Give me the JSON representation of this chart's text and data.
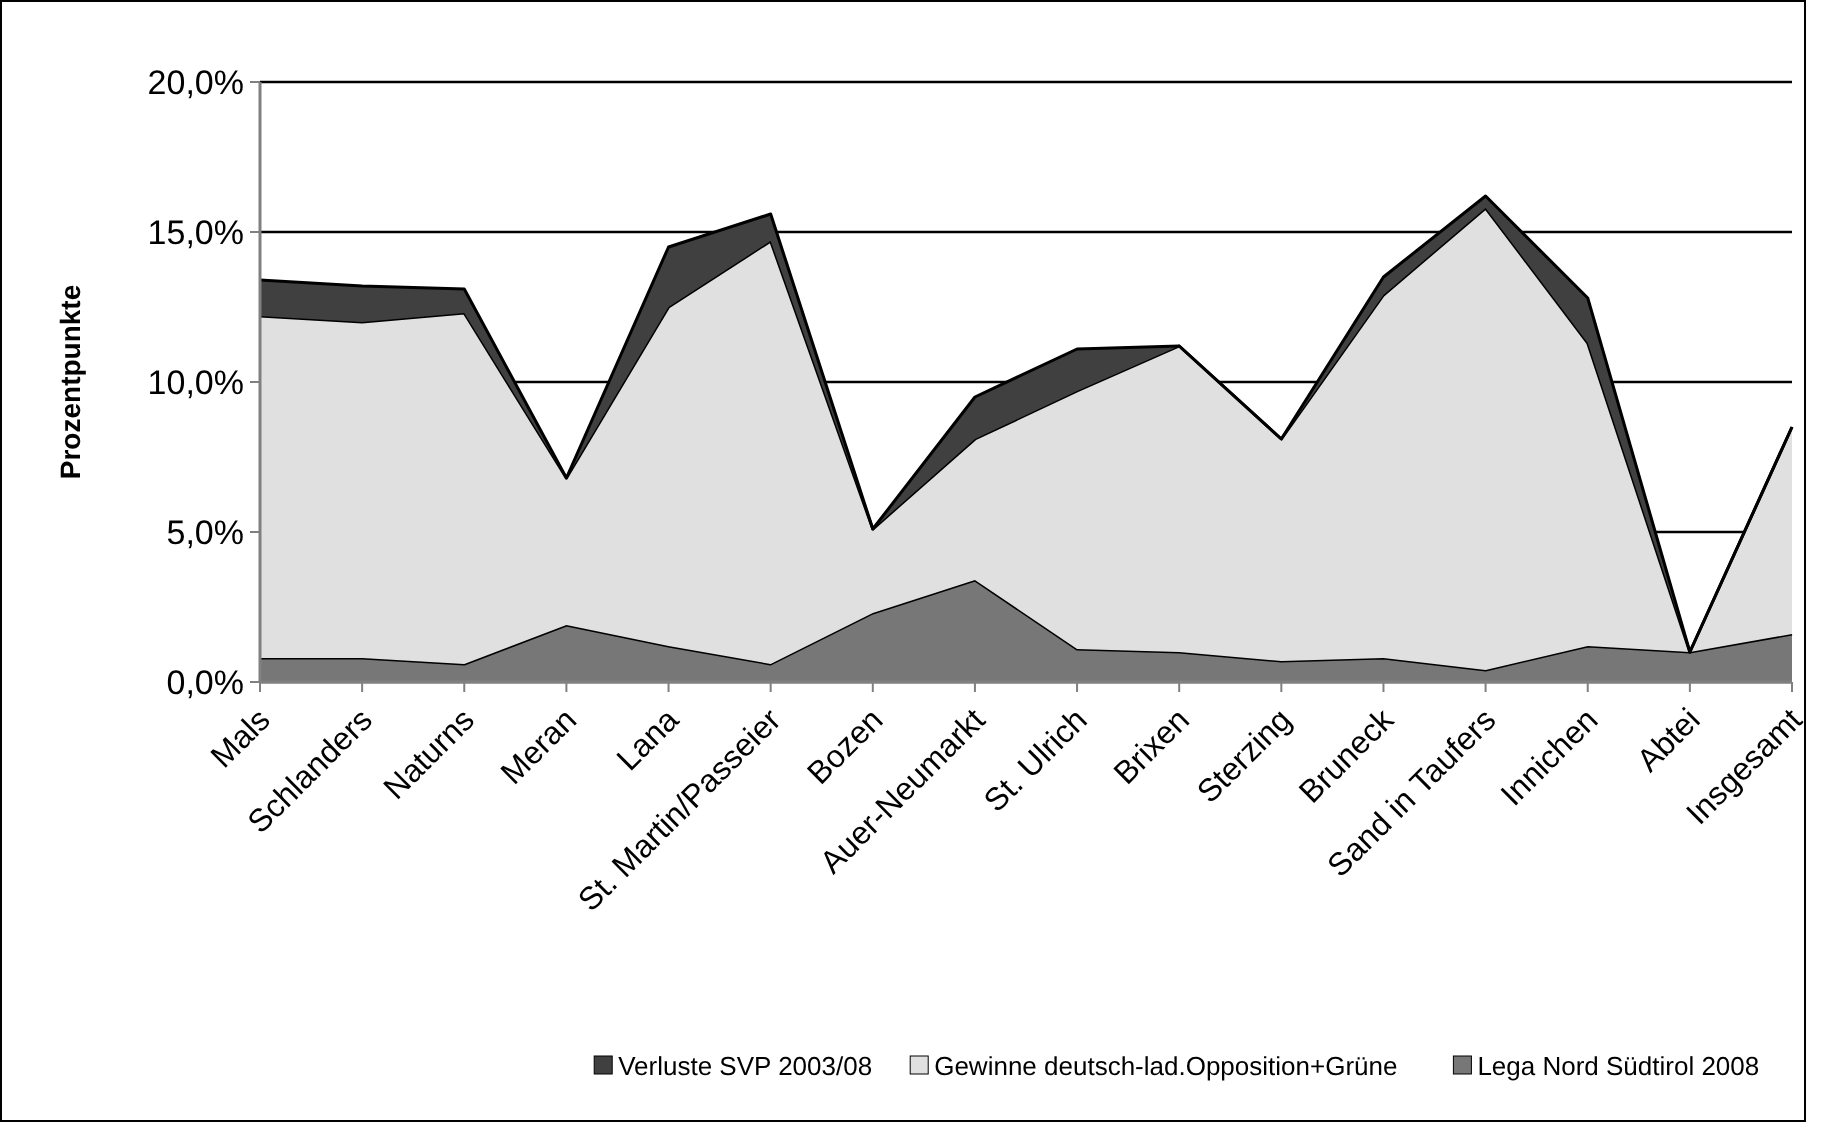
{
  "chart_data": {
    "type": "area",
    "stacked": true,
    "ylabel": "Prozentpunkte",
    "categories": [
      "Mals",
      "Schlanders",
      "Naturns",
      "Meran",
      "Lana",
      "St. Martin/Passeier",
      "Bozen",
      "Auer-Neumarkt",
      "St. Ulrich",
      "Brixen",
      "Sterzing",
      "Bruneck",
      "Sand in Taufers",
      "Innichen",
      "Abtei",
      "Insgesamt"
    ],
    "series": [
      {
        "name": "Lega Nord Südtirol 2008",
        "color": "#777777",
        "values": [
          0.8,
          0.8,
          0.6,
          1.9,
          1.2,
          0.6,
          2.3,
          3.4,
          1.1,
          1.0,
          0.7,
          0.8,
          0.4,
          1.2,
          1.0,
          1.6
        ]
      },
      {
        "name": "Gewinne deutsch-lad.Opposition+Grüne",
        "color": "#e0e0e0",
        "values": [
          11.4,
          11.2,
          11.7,
          4.9,
          11.3,
          14.1,
          2.8,
          4.7,
          8.6,
          10.2,
          7.4,
          12.1,
          15.4,
          10.1,
          0,
          6.9
        ]
      },
      {
        "name": "Verluste SVP 2003/08",
        "color": "#404040",
        "values": [
          1.2,
          1.2,
          0.8,
          0,
          2.0,
          0.9,
          0,
          1.4,
          1.4,
          0,
          0,
          0.6,
          0.4,
          1.5,
          0,
          0
        ]
      }
    ],
    "ylim": [
      0,
      20
    ],
    "yticks": [
      {
        "value": 0,
        "label": "0,0%"
      },
      {
        "value": 5,
        "label": "5,0%"
      },
      {
        "value": 10,
        "label": "10,0%"
      },
      {
        "value": 15,
        "label": "15,0%"
      },
      {
        "value": 20,
        "label": "20,0%"
      }
    ],
    "grid": "y",
    "legend": "bottom"
  }
}
